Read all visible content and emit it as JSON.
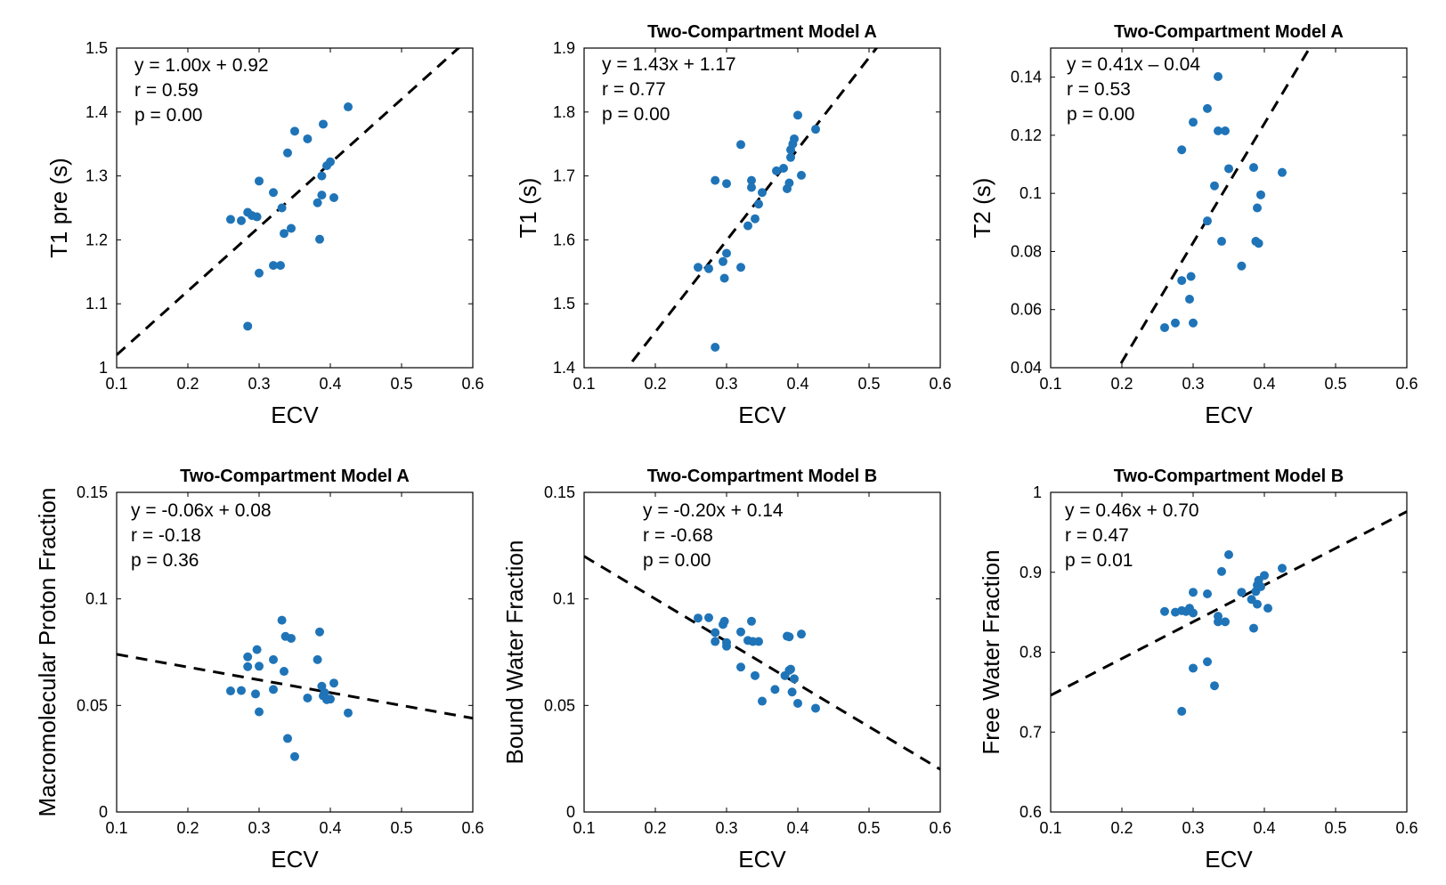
{
  "figure": {
    "name": "ECV correlation scatter plots"
  },
  "colors": {
    "points": "#1f74b8",
    "fit_line": "#000000",
    "axes": "#000000"
  },
  "chart_data": [
    {
      "type": "scatter",
      "title": "",
      "xlabel": "ECV",
      "ylabel": "T1 pre (s)",
      "xlim": [
        0.1,
        0.6
      ],
      "ylim": [
        1.0,
        1.5
      ],
      "xticks": [
        0.1,
        0.2,
        0.3,
        0.4,
        0.5,
        0.6
      ],
      "xtick_labels": [
        "0.1",
        "0.2",
        "0.3",
        "0.4",
        "0.5",
        "0.6"
      ],
      "yticks": [
        1.0,
        1.1,
        1.2,
        1.3,
        1.4,
        1.5
      ],
      "ytick_labels": [
        "1",
        "1.1",
        "1.2",
        "1.3",
        "1.4",
        "1.5"
      ],
      "annotation": [
        "y = 1.00x + 0.92",
        "r = 0.59",
        "p = 0.00"
      ],
      "fit": {
        "slope": 1.0,
        "intercept": 0.92
      },
      "points": [
        [
          0.26,
          1.232
        ],
        [
          0.275,
          1.23
        ],
        [
          0.284,
          1.243
        ],
        [
          0.29,
          1.238
        ],
        [
          0.297,
          1.236
        ],
        [
          0.3,
          1.148
        ],
        [
          0.3,
          1.292
        ],
        [
          0.284,
          1.065
        ],
        [
          0.32,
          1.274
        ],
        [
          0.32,
          1.16
        ],
        [
          0.33,
          1.16
        ],
        [
          0.332,
          1.25
        ],
        [
          0.335,
          1.21
        ],
        [
          0.34,
          1.336
        ],
        [
          0.345,
          1.218
        ],
        [
          0.35,
          1.37
        ],
        [
          0.368,
          1.358
        ],
        [
          0.382,
          1.258
        ],
        [
          0.385,
          1.201
        ],
        [
          0.388,
          1.27
        ],
        [
          0.388,
          1.3
        ],
        [
          0.39,
          1.381
        ],
        [
          0.395,
          1.316
        ],
        [
          0.4,
          1.322
        ],
        [
          0.405,
          1.266
        ],
        [
          0.425,
          1.408
        ]
      ]
    },
    {
      "type": "scatter",
      "title": "Two-Compartment Model A",
      "xlabel": "ECV",
      "ylabel": "T1 (s)",
      "xlim": [
        0.1,
        0.6
      ],
      "ylim": [
        1.4,
        1.9
      ],
      "xticks": [
        0.1,
        0.2,
        0.3,
        0.4,
        0.5,
        0.6
      ],
      "xtick_labels": [
        "0.1",
        "0.2",
        "0.3",
        "0.4",
        "0.5",
        "0.6"
      ],
      "yticks": [
        1.4,
        1.5,
        1.6,
        1.7,
        1.8,
        1.9
      ],
      "ytick_labels": [
        "1.4",
        "1.5",
        "1.6",
        "1.7",
        "1.8",
        "1.9"
      ],
      "annotation": [
        "y = 1.43x + 1.17",
        "r = 0.77",
        "p = 0.00"
      ],
      "fit": {
        "slope": 1.43,
        "intercept": 1.17
      },
      "points": [
        [
          0.26,
          1.557
        ],
        [
          0.275,
          1.555
        ],
        [
          0.284,
          1.432
        ],
        [
          0.284,
          1.693
        ],
        [
          0.295,
          1.566
        ],
        [
          0.297,
          1.54
        ],
        [
          0.3,
          1.579
        ],
        [
          0.3,
          1.688
        ],
        [
          0.32,
          1.749
        ],
        [
          0.32,
          1.557
        ],
        [
          0.33,
          1.622
        ],
        [
          0.335,
          1.682
        ],
        [
          0.335,
          1.693
        ],
        [
          0.34,
          1.633
        ],
        [
          0.345,
          1.656
        ],
        [
          0.35,
          1.674
        ],
        [
          0.37,
          1.708
        ],
        [
          0.38,
          1.712
        ],
        [
          0.385,
          1.68
        ],
        [
          0.388,
          1.689
        ],
        [
          0.39,
          1.729
        ],
        [
          0.39,
          1.741
        ],
        [
          0.393,
          1.75
        ],
        [
          0.395,
          1.758
        ],
        [
          0.4,
          1.795
        ],
        [
          0.405,
          1.701
        ],
        [
          0.425,
          1.773
        ]
      ]
    },
    {
      "type": "scatter",
      "title": "Two-Compartment Model A",
      "xlabel": "ECV",
      "ylabel": "T2 (s)",
      "xlim": [
        0.1,
        0.6
      ],
      "ylim": [
        0.04,
        0.15
      ],
      "xticks": [
        0.1,
        0.2,
        0.3,
        0.4,
        0.5,
        0.6
      ],
      "xtick_labels": [
        "0.1",
        "0.2",
        "0.3",
        "0.4",
        "0.5",
        "0.6"
      ],
      "yticks": [
        0.04,
        0.06,
        0.08,
        0.1,
        0.12,
        0.14
      ],
      "ytick_labels": [
        "0.04",
        "0.06",
        "0.08",
        "0.1",
        "0.12",
        "0.14"
      ],
      "annotation": [
        "y = 0.41x – 0.04",
        "r = 0.53",
        "p = 0.00"
      ],
      "fit": {
        "slope": 0.41,
        "intercept": -0.04
      },
      "points": [
        [
          0.26,
          0.0538
        ],
        [
          0.275,
          0.0554
        ],
        [
          0.284,
          0.115
        ],
        [
          0.284,
          0.07
        ],
        [
          0.295,
          0.0636
        ],
        [
          0.297,
          0.0714
        ],
        [
          0.3,
          0.1245
        ],
        [
          0.3,
          0.0554
        ],
        [
          0.32,
          0.0905
        ],
        [
          0.32,
          0.1292
        ],
        [
          0.33,
          0.1026
        ],
        [
          0.335,
          0.1402
        ],
        [
          0.335,
          0.1215
        ],
        [
          0.34,
          0.0835
        ],
        [
          0.345,
          0.1215
        ],
        [
          0.35,
          0.1085
        ],
        [
          0.368,
          0.075
        ],
        [
          0.385,
          0.1089
        ],
        [
          0.388,
          0.0835
        ],
        [
          0.39,
          0.095
        ],
        [
          0.392,
          0.0828
        ],
        [
          0.395,
          0.0995
        ],
        [
          0.425,
          0.1072
        ]
      ]
    },
    {
      "type": "scatter",
      "title": "Two-Compartment Model A",
      "xlabel": "ECV",
      "ylabel": "Macromolecular Proton Fraction",
      "xlim": [
        0.1,
        0.6
      ],
      "ylim": [
        0,
        0.15
      ],
      "xticks": [
        0.1,
        0.2,
        0.3,
        0.4,
        0.5,
        0.6
      ],
      "xtick_labels": [
        "0.1",
        "0.2",
        "0.3",
        "0.4",
        "0.5",
        "0.6"
      ],
      "yticks": [
        0,
        0.05,
        0.1,
        0.15
      ],
      "ytick_labels": [
        "0",
        "0.05",
        "0.1",
        "0.15"
      ],
      "annotation": [
        "y = -0.06x + 0.08",
        "r = -0.18",
        "p = 0.36"
      ],
      "fit": {
        "slope": -0.06,
        "intercept": 0.08
      },
      "points": [
        [
          0.26,
          0.0568
        ],
        [
          0.275,
          0.057
        ],
        [
          0.284,
          0.0728
        ],
        [
          0.284,
          0.0682
        ],
        [
          0.295,
          0.0554
        ],
        [
          0.297,
          0.0762
        ],
        [
          0.3,
          0.0684
        ],
        [
          0.3,
          0.047
        ],
        [
          0.32,
          0.0715
        ],
        [
          0.32,
          0.0575
        ],
        [
          0.332,
          0.09
        ],
        [
          0.335,
          0.066
        ],
        [
          0.337,
          0.0824
        ],
        [
          0.34,
          0.0345
        ],
        [
          0.345,
          0.0815
        ],
        [
          0.35,
          0.026
        ],
        [
          0.368,
          0.0535
        ],
        [
          0.382,
          0.0715
        ],
        [
          0.385,
          0.0845
        ],
        [
          0.388,
          0.059
        ],
        [
          0.39,
          0.0545
        ],
        [
          0.392,
          0.056
        ],
        [
          0.395,
          0.0527
        ],
        [
          0.4,
          0.053
        ],
        [
          0.405,
          0.0605
        ],
        [
          0.425,
          0.0465
        ]
      ]
    },
    {
      "type": "scatter",
      "title": "Two-Compartment Model B",
      "xlabel": "ECV",
      "ylabel": "Bound Water Fraction",
      "xlim": [
        0.1,
        0.6
      ],
      "ylim": [
        0,
        0.15
      ],
      "xticks": [
        0.1,
        0.2,
        0.3,
        0.4,
        0.5,
        0.6
      ],
      "xtick_labels": [
        "0.1",
        "0.2",
        "0.3",
        "0.4",
        "0.5",
        "0.6"
      ],
      "yticks": [
        0,
        0.05,
        0.1,
        0.15
      ],
      "ytick_labels": [
        "0",
        "0.05",
        "0.1",
        "0.15"
      ],
      "annotation": [
        "y = -0.20x + 0.14",
        "r = -0.68",
        "p = 0.00"
      ],
      "fit": {
        "slope": -0.2,
        "intercept": 0.14
      },
      "points": [
        [
          0.26,
          0.091
        ],
        [
          0.275,
          0.0912
        ],
        [
          0.284,
          0.08
        ],
        [
          0.284,
          0.0842
        ],
        [
          0.295,
          0.088
        ],
        [
          0.297,
          0.0895
        ],
        [
          0.3,
          0.0778
        ],
        [
          0.3,
          0.0795
        ],
        [
          0.32,
          0.0845
        ],
        [
          0.32,
          0.068
        ],
        [
          0.33,
          0.0805
        ],
        [
          0.335,
          0.0895
        ],
        [
          0.337,
          0.08
        ],
        [
          0.34,
          0.064
        ],
        [
          0.345,
          0.08
        ],
        [
          0.35,
          0.052
        ],
        [
          0.368,
          0.0575
        ],
        [
          0.382,
          0.064
        ],
        [
          0.385,
          0.0825
        ],
        [
          0.388,
          0.0822
        ],
        [
          0.388,
          0.0665
        ],
        [
          0.39,
          0.067
        ],
        [
          0.392,
          0.0563
        ],
        [
          0.395,
          0.0625
        ],
        [
          0.4,
          0.051
        ],
        [
          0.405,
          0.0835
        ],
        [
          0.425,
          0.0487
        ]
      ]
    },
    {
      "type": "scatter",
      "title": "Two-Compartment Model B",
      "xlabel": "ECV",
      "ylabel": "Free Water Fraction",
      "xlim": [
        0.1,
        0.6
      ],
      "ylim": [
        0.6,
        1.0
      ],
      "xticks": [
        0.1,
        0.2,
        0.3,
        0.4,
        0.5,
        0.6
      ],
      "xtick_labels": [
        "0.1",
        "0.2",
        "0.3",
        "0.4",
        "0.5",
        "0.6"
      ],
      "yticks": [
        0.6,
        0.7,
        0.8,
        0.9,
        1.0
      ],
      "ytick_labels": [
        "0.6",
        "0.7",
        "0.8",
        "0.9",
        "1"
      ],
      "annotation": [
        "y = 0.46x + 0.70",
        "r = 0.47",
        "p = 0.01"
      ],
      "fit": {
        "slope": 0.46,
        "intercept": 0.7
      },
      "points": [
        [
          0.26,
          0.851
        ],
        [
          0.275,
          0.85
        ],
        [
          0.284,
          0.852
        ],
        [
          0.284,
          0.726
        ],
        [
          0.29,
          0.851
        ],
        [
          0.295,
          0.855
        ],
        [
          0.3,
          0.875
        ],
        [
          0.3,
          0.849
        ],
        [
          0.3,
          0.78
        ],
        [
          0.32,
          0.873
        ],
        [
          0.32,
          0.788
        ],
        [
          0.33,
          0.758
        ],
        [
          0.335,
          0.845
        ],
        [
          0.335,
          0.838
        ],
        [
          0.34,
          0.901
        ],
        [
          0.345,
          0.838
        ],
        [
          0.35,
          0.922
        ],
        [
          0.368,
          0.875
        ],
        [
          0.382,
          0.866
        ],
        [
          0.385,
          0.83
        ],
        [
          0.388,
          0.876
        ],
        [
          0.39,
          0.86
        ],
        [
          0.39,
          0.884
        ],
        [
          0.392,
          0.89
        ],
        [
          0.395,
          0.882
        ],
        [
          0.4,
          0.896
        ],
        [
          0.405,
          0.855
        ],
        [
          0.425,
          0.905
        ]
      ]
    }
  ]
}
